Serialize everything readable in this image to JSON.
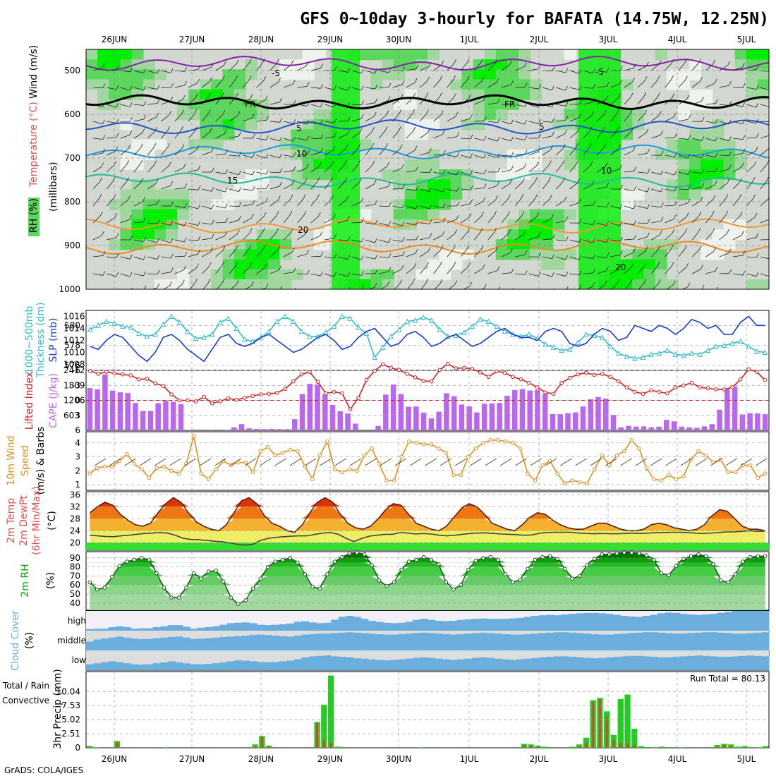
{
  "title": "GFS 0~10day 3-hourly for BAFATA (14.75W, 12.25N)",
  "credit": "GrADS: COLA/IGES",
  "dates": [
    "26JUN",
    "27JUN",
    "28JUN",
    "29JUN",
    "30JUN",
    "1JUL",
    "2JUL",
    "3JUL",
    "4JUL",
    "5JUL"
  ],
  "colors": {
    "rh_light": "#d2d8d0",
    "rh_mid": "#9fd79f",
    "rh_green": "#5cd65c",
    "rh_bright": "#00ee00",
    "wind_label": "#000000",
    "temp_label": "#e05050",
    "rh_label": "#22aa22",
    "thickness": "#33bbcc",
    "slp": "#1a3ecc",
    "lifted": "#d02020",
    "cape": "#bb66ee",
    "wind10": "#e09020",
    "temp_dark": "#cc2200",
    "dewpt": "#444444",
    "rh2m": "#00aa00",
    "cloud": "#6aaede",
    "precip_total": "#22cc22",
    "precip_conv": "#ee3333"
  },
  "panels": {
    "upper": {
      "ylabel_rh": "RH (%)",
      "ylabel_temp": "Temperature (°C)",
      "ylabel_wind": "Wind (m/s)",
      "ylabel_p": "(millibars)",
      "ticks": [
        "500",
        "600",
        "700",
        "800",
        "900",
        "1000"
      ],
      "contour_labels": [
        "-5",
        "FR",
        "5",
        "10",
        "15",
        "20",
        "-5",
        "FR",
        "5",
        "10",
        "20"
      ]
    },
    "slp": {
      "ylabel_a": "1000~500mb",
      "ylabel_b": "Thickness (dm)",
      "ylabel_c": "SLP (mb)",
      "left_ticks": [
        "576",
        "578",
        "580"
      ],
      "right_ticks": [
        "1008",
        "1010",
        "1012",
        "1014",
        "1016"
      ]
    },
    "cape": {
      "ylabel_a": "Lifted Index",
      "ylabel_b": "CAPE (J/kg)",
      "left_ticks": [
        "-6",
        "-3",
        "0",
        "3",
        "6"
      ],
      "right_ticks": [
        "603",
        "1206",
        "1809",
        "2412"
      ]
    },
    "wind": {
      "ylabel_a": "10m Wind",
      "ylabel_b": "Speed",
      "ylabel_c": "(m/s) & Barbs",
      "ticks": [
        "1",
        "2",
        "3",
        "4"
      ]
    },
    "temp": {
      "ylabel_a": "2m Temp",
      "ylabel_b": "2m DewPt",
      "ylabel_c": "(6hr Min/Max)",
      "ylabel_d": "(°C)",
      "ticks": [
        "20",
        "24",
        "28",
        "32",
        "36"
      ]
    },
    "rh": {
      "ylabel_a": "2m RH",
      "ylabel_b": "(%)",
      "ticks": [
        "40",
        "50",
        "60",
        "70",
        "80",
        "90"
      ]
    },
    "cloud": {
      "ylabel_a": "Cloud Cover",
      "ylabel_b": "(%)",
      "levels": [
        "high",
        "middle",
        "low"
      ]
    },
    "precip": {
      "ylabel_a": "Total / Rain",
      "ylabel_b": "Convective",
      "ylabel_c": "3hr Precip (mm)",
      "ticks": [
        "0",
        "2.51",
        "5.02",
        "7.53",
        "10.04"
      ],
      "run_total": "Run Total = 80.13"
    }
  },
  "chart_data": {
    "type": "meteogram",
    "x_start": "2025-06-25T12",
    "interval_hours": 3,
    "thickness_dm": [
      579.6,
      580,
      580.4,
      580.2,
      579.9,
      579.8,
      579.2,
      578.9,
      579.1,
      580.1,
      580.9,
      580.3,
      579.4,
      578.7,
      578.8,
      579.1,
      580.3,
      580.7,
      579.7,
      578.6,
      578.4,
      578.8,
      579.4,
      580.4,
      580.9,
      580.4,
      579.4,
      578.9,
      578.9,
      579.3,
      579.9,
      580.9,
      580.7,
      579.8,
      579.2,
      576.8,
      577.8,
      578.9,
      579.6,
      580.4,
      580.5,
      580.8,
      580.5,
      579.6,
      578.9,
      579,
      579.3,
      579.9,
      580.6,
      580.4,
      579.9,
      579.4,
      579.1,
      578.9,
      579.1,
      578.7,
      578.1,
      577.8,
      577.5,
      577.6,
      578.3,
      579.1,
      579,
      578.8,
      577.9,
      577.2,
      576.9,
      576.7,
      576.8,
      577.1,
      577.2,
      577.5,
      577.1,
      577,
      577.2,
      577.1,
      577.5,
      577.9,
      578,
      578.2,
      578.4,
      577.9,
      577.4,
      577.3
    ],
    "slp_mb": [
      1011,
      1010.5,
      1012,
      1013,
      1012.5,
      1011,
      1009.5,
      1008.5,
      1010,
      1012.5,
      1013,
      1012,
      1010.5,
      1009.5,
      1008.5,
      1010.5,
      1012.5,
      1013,
      1011.5,
      1011,
      1011.5,
      1012.5,
      1013,
      1012,
      1011,
      1010,
      1010.5,
      1011.5,
      1012.5,
      1013,
      1012,
      1010.5,
      1011,
      1012.5,
      1013.5,
      1014,
      1012.5,
      1011,
      1011.5,
      1013,
      1013.5,
      1012.5,
      1011,
      1011.5,
      1012.5,
      1013,
      1012,
      1011,
      1011.5,
      1012.5,
      1013.5,
      1014,
      1013,
      1012.5,
      1012.5,
      1012,
      1013.5,
      1014,
      1013.5,
      1011.5,
      1011,
      1011.5,
      1013,
      1014,
      1013.5,
      1012,
      1012.5,
      1014.5,
      1014,
      1013.5,
      1014.5,
      1014,
      1013,
      1014,
      1015.5,
      1015,
      1014,
      1014.5,
      1013,
      1013,
      1015,
      1016,
      1014.5,
      1014.5
    ],
    "lifted_index": [
      -5.9,
      -5.3,
      -5.7,
      -5.4,
      -5.2,
      -5,
      -4.2,
      -4.3,
      -3.4,
      -2.9,
      -1.2,
      0,
      0,
      0.2,
      -0.7,
      0.6,
      0.2,
      -0.4,
      -0.1,
      -0.5,
      -0.9,
      -1.2,
      -1.3,
      -1.5,
      -2.3,
      -3.8,
      -5.2,
      -5.7,
      -3.7,
      -1.4,
      -1.7,
      -1.4,
      1.8,
      -0.5,
      -4.1,
      -5.9,
      -7.2,
      -6.5,
      -6.1,
      -5.3,
      -4.6,
      -3.9,
      -3.8,
      -6.1,
      -7.3,
      -6.4,
      -6.5,
      -6.3,
      -5.6,
      -4.7,
      -5.8,
      -5.5,
      -4.7,
      -4.2,
      -3.5,
      -2.6,
      -1.6,
      -1.3,
      -3.5,
      -4.5,
      -5.2,
      -5.5,
      -5.1,
      -5.3,
      -4.7,
      -3.8,
      -2.6,
      -1.7,
      -1.3,
      -2,
      -1.7,
      -1.4,
      -2.6,
      -3,
      -3.5,
      -2.6,
      -2.4,
      -2.2,
      -2.2,
      -2.6,
      -4.2,
      -6.2,
      -5.7,
      -4.1
    ],
    "cape_jkg": [
      1700,
      1650,
      2250,
      1600,
      1530,
      1500,
      1100,
      780,
      780,
      1090,
      1180,
      1150,
      1050,
      10,
      0,
      0,
      5,
      0,
      20,
      120,
      250,
      80,
      60,
      50,
      60,
      50,
      50,
      450,
      1460,
      1870,
      1840,
      1460,
      1020,
      770,
      680,
      270,
      0,
      0,
      180,
      1440,
      1840,
      1460,
      950,
      960,
      710,
      480,
      750,
      1490,
      1370,
      1040,
      960,
      720,
      1070,
      1080,
      1100,
      1390,
      1620,
      1660,
      1600,
      1620,
      1470,
      660,
      650,
      690,
      720,
      960,
      1250,
      1340,
      1280,
      620,
      120,
      180,
      150,
      160,
      120,
      150,
      420,
      360,
      150,
      120,
      100,
      160,
      250,
      830,
      1650,
      1760,
      640,
      690,
      680,
      650
    ],
    "wind_speed_ms": [
      1.8,
      2.2,
      2.3,
      2.3,
      2.7,
      3.2,
      2.5,
      2.1,
      1.5,
      2.2,
      2.3,
      2,
      1.8,
      2.5,
      4.5,
      1.8,
      1.4,
      2.1,
      2.7,
      2.4,
      2.6,
      2.6,
      1.9,
      3.4,
      3.7,
      3.1,
      3.3,
      3.5,
      3.4,
      2.3,
      1.4,
      3.1,
      4.1,
      2.1,
      1.9,
      2.1,
      2,
      3.1,
      3.6,
      2.5,
      1.3,
      1.3,
      3,
      4.1,
      4,
      3.9,
      3.9,
      3.6,
      3.3,
      1.7,
      1.7,
      3,
      3.6,
      4,
      4.2,
      4.2,
      4.1,
      4,
      3.6,
      1.8,
      1.3,
      2.4,
      2.7,
      1.8,
      1.1,
      1.3,
      1.2,
      1.1,
      2.1,
      3.1,
      2.4,
      3.1,
      3.4,
      4.2,
      3.6,
      2.2,
      1.4,
      1.3,
      1.7,
      1.4,
      1.6,
      2.8,
      3.4,
      3.1,
      2.6,
      2.8,
      1.9,
      1.9,
      2.4,
      2.4,
      1.5,
      1.8
    ],
    "temp_c": [
      30,
      32,
      33.5,
      32.5,
      29.5,
      27.5,
      26,
      25.5,
      26.5,
      30,
      33,
      35,
      33.5,
      30,
      27,
      25.5,
      24.5,
      24,
      26,
      30,
      34,
      35,
      33,
      29,
      26.5,
      25.5,
      24,
      23.5,
      26,
      30,
      33.5,
      35,
      33.5,
      29.5,
      26.5,
      25,
      24.5,
      25.5,
      28,
      31,
      33,
      32.5,
      29.5,
      26.5,
      25.5,
      24.5,
      24,
      25.5,
      28.5,
      31.5,
      33,
      32,
      29.5,
      26.5,
      25.5,
      24.5,
      24,
      26,
      28.5,
      30,
      29.5,
      27.5,
      26,
      25,
      24.5,
      24.5,
      25.5,
      26.5,
      26.5,
      25.5,
      24.5,
      24,
      24,
      24.5,
      26,
      26.5,
      26,
      25,
      24.5,
      24,
      24.5,
      26,
      29,
      31,
      30.5,
      28,
      25.5,
      24.5,
      24.5,
      24
    ],
    "dewpt_c": [
      22.5,
      22.3,
      22.1,
      22,
      22.3,
      22.5,
      22.8,
      23.1,
      23.2,
      23.4,
      23.2,
      22.5,
      21.5,
      21.1,
      21,
      20.8,
      20.5,
      20.3,
      20,
      19.5,
      19.2,
      19.5,
      20.8,
      21.5,
      21.8,
      22,
      22.2,
      22.3,
      22.3,
      22.8,
      23.2,
      23.4,
      22.8,
      21.5,
      20.4,
      21.4,
      22.2,
      22.5,
      22.8,
      22.8,
      23.4,
      23.2,
      22.9,
      23.1,
      22.9,
      22.5,
      22.3,
      22.5,
      22.8,
      23.1,
      23.2,
      23.3,
      23.1,
      22.9,
      22.8,
      22.7,
      22.5,
      22.6,
      23.2,
      23.4,
      23.5,
      23.5,
      23.5,
      23.2,
      23.1,
      23,
      23.1,
      23,
      23,
      23.1,
      23.2,
      23.1,
      23.2,
      23.4,
      23.4,
      23.5,
      23.5,
      23.4,
      23.2,
      23.1,
      23.2,
      23.4,
      23.6,
      23.6,
      23.8,
      24,
      23.8,
      23.9
    ],
    "rh2m_pct": [
      63,
      55,
      57,
      69,
      81,
      86,
      88,
      90,
      88,
      73,
      57,
      46,
      46,
      57,
      73,
      67,
      75,
      76,
      64,
      46,
      39,
      43,
      56,
      67,
      80,
      86,
      88,
      90,
      85,
      72,
      58,
      56,
      72,
      86,
      91,
      95,
      96,
      94,
      82,
      65,
      59,
      63,
      77,
      86,
      88,
      91,
      88,
      83,
      63,
      55,
      60,
      77,
      87,
      90,
      91,
      88,
      72,
      63,
      66,
      78,
      88,
      91,
      92,
      89,
      78,
      67,
      70,
      82,
      89,
      94,
      94,
      95,
      96,
      96,
      95,
      93,
      88,
      73,
      71,
      81,
      89,
      92,
      94,
      92,
      83,
      65,
      63,
      72,
      86,
      91,
      92,
      92
    ],
    "cloud_high_pct": [
      8,
      10,
      10,
      18,
      22,
      18,
      10,
      12,
      12,
      18,
      22,
      28,
      28,
      20,
      10,
      15,
      18,
      22,
      30,
      38,
      40,
      42,
      38,
      30,
      28,
      30,
      32,
      36,
      45,
      48,
      42,
      38,
      40,
      55,
      70,
      75,
      70,
      60,
      50,
      45,
      40,
      38,
      40,
      45,
      55,
      60,
      55,
      50,
      48,
      50,
      55,
      58,
      60,
      62,
      60,
      60,
      60,
      62,
      65,
      70,
      75,
      78,
      80,
      78,
      82,
      85,
      88,
      90,
      90,
      88,
      85,
      80,
      75,
      72,
      70,
      75,
      80,
      88,
      92,
      90,
      85,
      82,
      80,
      82,
      85,
      90,
      95,
      100,
      100,
      100,
      100,
      100
    ],
    "cloud_mid_pct": [
      45,
      55,
      60,
      65,
      70,
      65,
      60,
      58,
      58,
      62,
      65,
      68,
      70,
      65,
      58,
      60,
      62,
      65,
      68,
      70,
      72,
      75,
      78,
      80,
      78,
      75,
      72,
      70,
      75,
      80,
      82,
      85,
      85,
      88,
      90,
      92,
      90,
      88,
      85,
      82,
      80,
      80,
      82,
      85,
      88,
      90,
      88,
      85,
      82,
      80,
      82,
      85,
      88,
      90,
      88,
      85,
      82,
      80,
      80,
      82,
      85,
      88,
      90,
      92,
      92,
      90,
      88,
      85,
      82,
      80,
      80,
      82,
      85,
      88,
      90,
      92,
      92,
      90,
      88,
      85,
      85,
      88,
      90,
      92,
      92,
      90,
      88,
      85,
      85,
      88,
      90,
      92
    ],
    "cloud_low_pct": [
      30,
      35,
      40,
      45,
      40,
      35,
      30,
      28,
      30,
      35,
      40,
      45,
      40,
      35,
      30,
      30,
      32,
      35,
      40,
      45,
      50,
      48,
      45,
      42,
      40,
      42,
      45,
      48,
      55,
      65,
      70,
      72,
      75,
      70,
      68,
      65,
      60,
      58,
      55,
      52,
      50,
      52,
      55,
      58,
      62,
      65,
      62,
      58,
      55,
      52,
      55,
      58,
      62,
      65,
      62,
      58,
      55,
      52,
      55,
      58,
      62,
      65,
      68,
      70,
      70,
      68,
      65,
      62,
      60,
      62,
      65,
      68,
      70,
      72,
      72,
      70,
      68,
      65,
      65,
      68,
      70,
      72,
      74,
      72,
      70,
      68,
      68,
      70,
      72,
      74,
      72,
      70
    ],
    "precip_total_mm": [
      0.3,
      0.1,
      0,
      0,
      1.2,
      0,
      0,
      0,
      0,
      0,
      0,
      0.1,
      0,
      0,
      0,
      0,
      0,
      0,
      0,
      0,
      0,
      0,
      0,
      0,
      0.6,
      2.1,
      0.4,
      0,
      0,
      0,
      0,
      0,
      0,
      4.6,
      7.7,
      12.9,
      0.2,
      0,
      0,
      0,
      0,
      0,
      0,
      0,
      0,
      0,
      0,
      0,
      0.1,
      0,
      0,
      0,
      0,
      0,
      0,
      0,
      0,
      0,
      0,
      0,
      0,
      0,
      0,
      0.7,
      0.6,
      0.4,
      0.2,
      0,
      0,
      0,
      0.2,
      0.6,
      1.8,
      8.5,
      8.9,
      6.5,
      2.3,
      8.7,
      9.5,
      3.4,
      0.3,
      0,
      0.1,
      0.2,
      0,
      0,
      0.1,
      0,
      0,
      0,
      0,
      0.5,
      0.7,
      0.6,
      0.2,
      0.3,
      0,
      0.1,
      0.3
    ],
    "precip_conv_mm": [
      0.1,
      0,
      0,
      0,
      1,
      0,
      0,
      0,
      0,
      0,
      0,
      0,
      0,
      0,
      0,
      0,
      0,
      0,
      0,
      0,
      0,
      0,
      0,
      0,
      0.3,
      1.9,
      0.2,
      0,
      0,
      0,
      0,
      0,
      0,
      4.4,
      1.4,
      0.8,
      0,
      0,
      0,
      0,
      0,
      0,
      0,
      0,
      0,
      0,
      0,
      0,
      0,
      0,
      0,
      0,
      0,
      0,
      0,
      0,
      0,
      0,
      0,
      0,
      0,
      0,
      0,
      0.4,
      0.4,
      0.2,
      0,
      0,
      0,
      0,
      0,
      0.3,
      0.9,
      8.1,
      8.6,
      5.5,
      1.4,
      0.9,
      0.8,
      0.5,
      0,
      0,
      0,
      0.1,
      0,
      0,
      0,
      0,
      0,
      0,
      0,
      0.3,
      0.5,
      0.3,
      0,
      0.1,
      0,
      0,
      0
    ]
  }
}
